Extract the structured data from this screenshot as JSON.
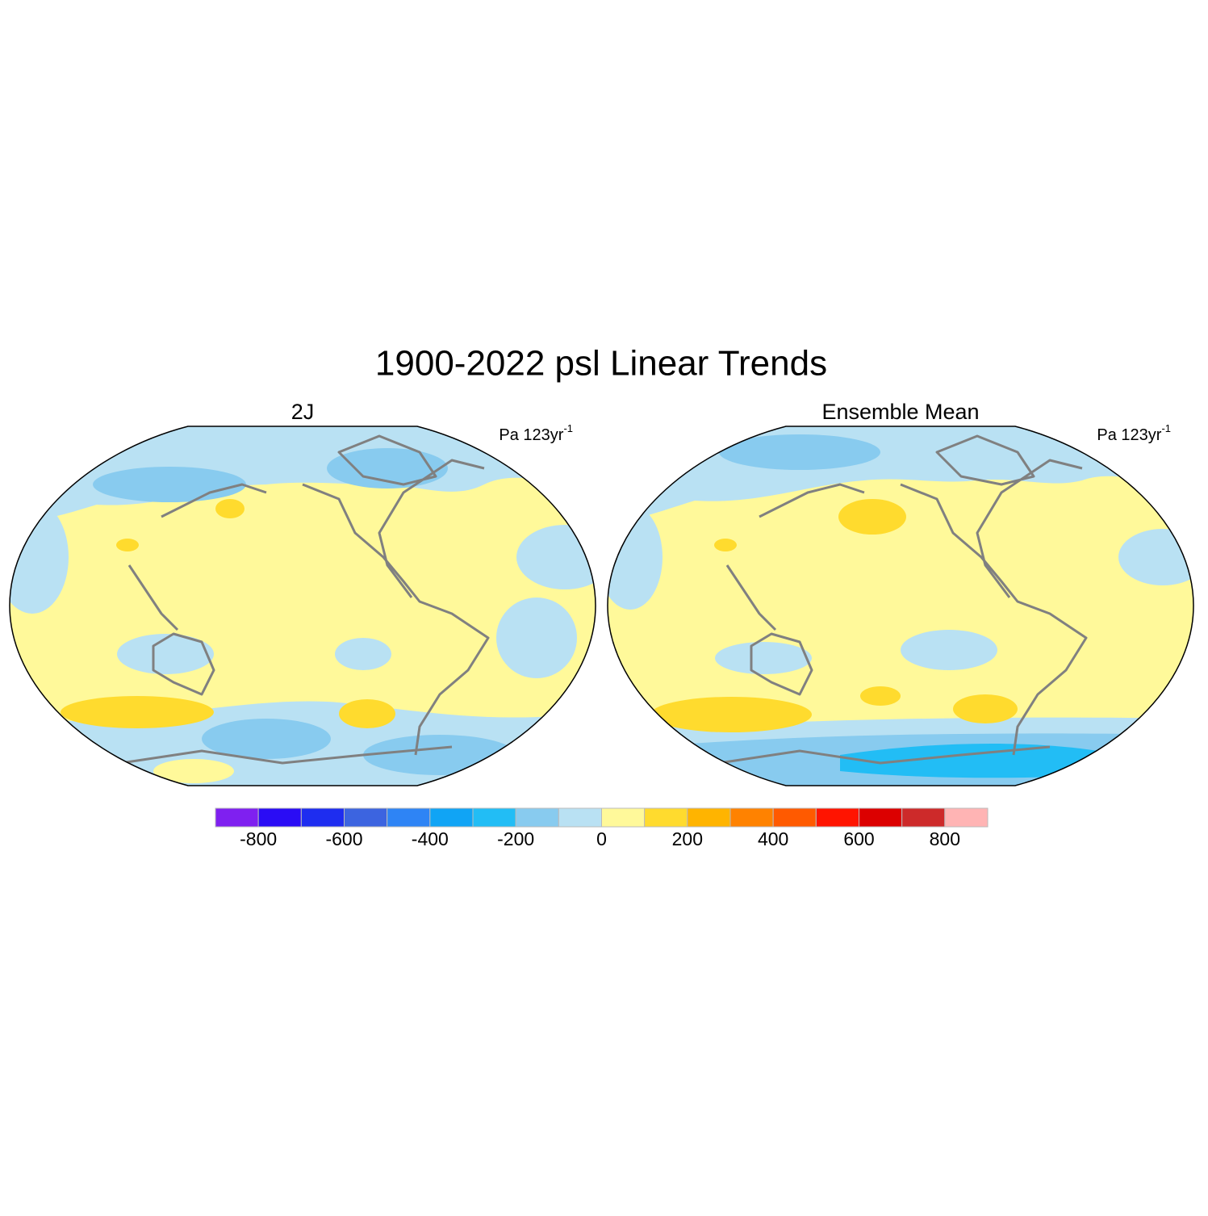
{
  "title": "1900-2022 psl Linear Trends",
  "panels": [
    {
      "title": "2J",
      "units": {
        "text": "Pa 123yr",
        "superscript": "-1"
      }
    },
    {
      "title": "Ensemble Mean",
      "units": {
        "text": "Pa 123yr",
        "superscript": "-1"
      }
    }
  ],
  "colorbar": {
    "colors": [
      "#7f20f0",
      "#2a0cf5",
      "#1e2df0",
      "#3c64e0",
      "#2e84f5",
      "#10a4f5",
      "#22bdf5",
      "#88cbef",
      "#b9e1f3",
      "#fff99a",
      "#ffdb2e",
      "#ffb400",
      "#ff8200",
      "#ff5a00",
      "#ff1400",
      "#dc0000",
      "#cd2a2a",
      "#ffb4b4"
    ],
    "labels": [
      -800,
      -600,
      -400,
      -200,
      0,
      200,
      400,
      600,
      800
    ]
  }
}
